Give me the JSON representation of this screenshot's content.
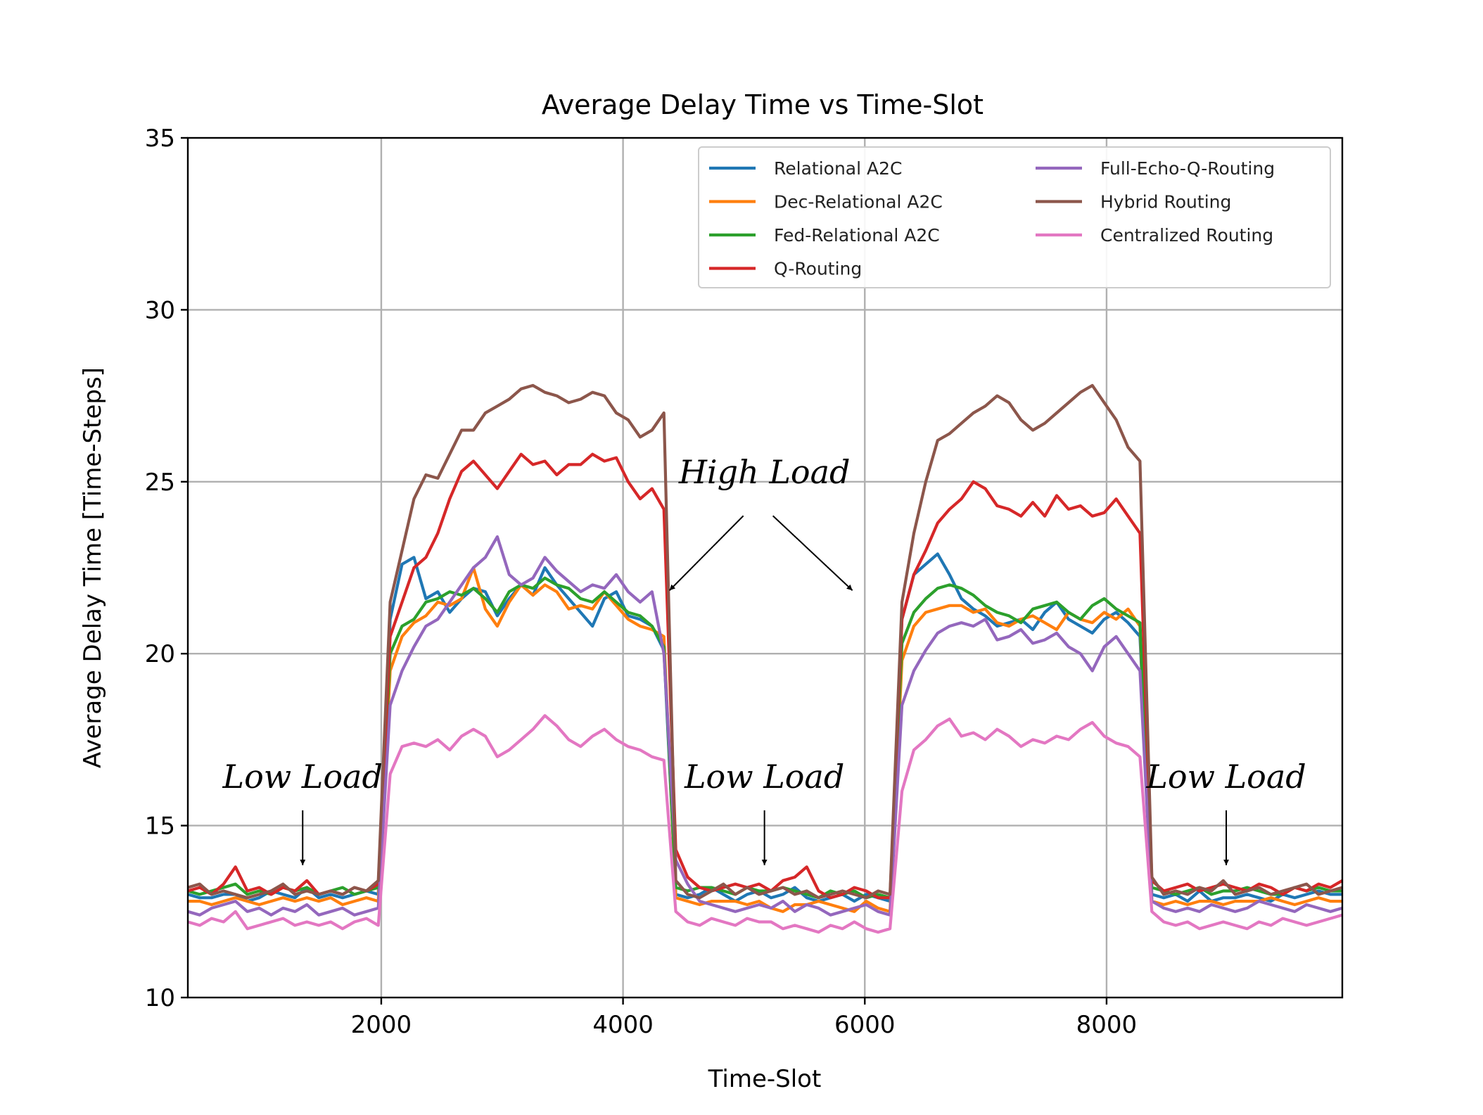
{
  "chart_data": {
    "type": "line",
    "title": "Average Delay Time vs Time-Slot",
    "xlabel": "Time-Slot",
    "ylabel": "Average Delay Time [Time-Steps]",
    "xlim": [
      400,
      9950
    ],
    "ylim": [
      10,
      35
    ],
    "xticks": [
      2000,
      4000,
      6000,
      8000
    ],
    "yticks": [
      10,
      15,
      20,
      25,
      30,
      35
    ],
    "grid": true,
    "legend_position": "top-right",
    "series": [
      {
        "name": "Relational A2C",
        "color": "#1f77b4",
        "values": [
          13.0,
          12.9,
          12.9,
          13.0,
          13.0,
          12.8,
          12.9,
          13.1,
          13.0,
          12.9,
          13.2,
          12.9,
          13.0,
          12.9,
          13.0,
          13.1,
          13.0,
          21.0,
          22.6,
          22.8,
          21.6,
          21.8,
          21.2,
          21.6,
          21.9,
          21.8,
          21.1,
          21.6,
          22.0,
          21.7,
          22.5,
          22.0,
          21.6,
          21.2,
          20.8,
          21.6,
          21.8,
          21.1,
          21.0,
          20.8,
          20.1,
          13.0,
          12.9,
          13.0,
          13.2,
          13.0,
          12.8,
          13.0,
          13.1,
          12.9,
          13.0,
          13.2,
          12.9,
          12.8,
          12.9,
          13.0,
          12.8,
          13.0,
          12.9,
          12.8,
          21.0,
          22.3,
          22.6,
          22.9,
          22.3,
          21.6,
          21.3,
          21.1,
          20.8,
          20.9,
          21.0,
          20.7,
          21.2,
          21.5,
          21.0,
          20.8,
          20.6,
          21.0,
          21.2,
          20.9,
          20.5,
          13.0,
          12.9,
          13.0,
          12.8,
          13.1,
          12.8,
          12.9,
          12.9,
          13.0,
          12.9,
          12.8,
          13.0,
          12.9,
          13.0,
          13.1,
          13.0,
          13.0
        ]
      },
      {
        "name": "Dec-Relational A2C",
        "color": "#ff7f0e",
        "values": [
          12.8,
          12.8,
          12.7,
          12.8,
          12.9,
          12.8,
          12.7,
          12.8,
          12.9,
          12.8,
          12.9,
          12.8,
          12.9,
          12.7,
          12.8,
          12.9,
          12.8,
          19.5,
          20.5,
          20.9,
          21.1,
          21.5,
          21.4,
          21.6,
          22.5,
          21.3,
          20.8,
          21.5,
          22.0,
          21.7,
          22.0,
          21.8,
          21.3,
          21.4,
          21.3,
          21.8,
          21.4,
          21.0,
          20.8,
          20.7,
          20.5,
          12.9,
          12.8,
          12.7,
          12.8,
          12.8,
          12.8,
          12.7,
          12.8,
          12.6,
          12.5,
          12.7,
          12.7,
          12.8,
          12.7,
          12.6,
          12.5,
          12.8,
          12.6,
          12.5,
          19.8,
          20.8,
          21.2,
          21.3,
          21.4,
          21.4,
          21.2,
          21.3,
          20.9,
          20.8,
          21.0,
          21.1,
          20.9,
          20.7,
          21.2,
          21.0,
          20.9,
          21.2,
          21.0,
          21.3,
          20.8,
          12.8,
          12.7,
          12.8,
          12.7,
          12.8,
          12.8,
          12.7,
          12.8,
          12.8,
          12.8,
          12.9,
          12.8,
          12.7,
          12.8,
          12.9,
          12.8,
          12.8
        ]
      },
      {
        "name": "Fed-Relational A2C",
        "color": "#2ca02c",
        "values": [
          13.1,
          13.0,
          13.1,
          13.2,
          13.3,
          13.0,
          13.1,
          13.0,
          13.2,
          13.1,
          13.2,
          13.0,
          13.1,
          13.2,
          13.0,
          13.1,
          13.2,
          20.0,
          20.8,
          21.0,
          21.5,
          21.6,
          21.8,
          21.7,
          21.9,
          21.6,
          21.2,
          21.8,
          22.0,
          21.9,
          22.2,
          22.0,
          21.9,
          21.6,
          21.5,
          21.8,
          21.5,
          21.2,
          21.1,
          20.8,
          20.2,
          13.2,
          13.1,
          13.2,
          13.2,
          13.1,
          13.0,
          13.2,
          13.1,
          13.1,
          13.2,
          13.1,
          13.0,
          12.9,
          13.1,
          13.0,
          13.1,
          12.9,
          13.0,
          12.9,
          20.3,
          21.2,
          21.6,
          21.9,
          22.0,
          21.9,
          21.7,
          21.4,
          21.2,
          21.1,
          20.9,
          21.3,
          21.4,
          21.5,
          21.2,
          21.0,
          21.4,
          21.6,
          21.3,
          21.1,
          20.9,
          13.2,
          13.1,
          13.0,
          13.1,
          13.2,
          13.0,
          13.1,
          13.1,
          13.2,
          13.1,
          13.0,
          13.0,
          13.2,
          13.1,
          13.2,
          13.1,
          13.1
        ]
      },
      {
        "name": "Q-Routing",
        "color": "#d62728",
        "values": [
          13.1,
          13.2,
          13.0,
          13.3,
          13.8,
          13.1,
          13.2,
          13.0,
          13.2,
          13.1,
          13.4,
          13.0,
          13.1,
          13.0,
          13.2,
          13.1,
          13.3,
          20.5,
          21.5,
          22.5,
          22.8,
          23.5,
          24.5,
          25.3,
          25.6,
          25.2,
          24.8,
          25.3,
          25.8,
          25.5,
          25.6,
          25.2,
          25.5,
          25.5,
          25.8,
          25.6,
          25.7,
          25.0,
          24.5,
          24.8,
          24.2,
          14.3,
          13.5,
          13.2,
          13.1,
          13.2,
          13.3,
          13.2,
          13.3,
          13.1,
          13.4,
          13.5,
          13.8,
          13.1,
          12.9,
          13.0,
          13.2,
          13.1,
          12.9,
          12.9,
          21.0,
          22.3,
          23.0,
          23.8,
          24.2,
          24.5,
          25.0,
          24.8,
          24.3,
          24.2,
          24.0,
          24.4,
          24.0,
          24.6,
          24.2,
          24.3,
          24.0,
          24.1,
          24.5,
          24.0,
          23.5,
          13.4,
          13.1,
          13.2,
          13.3,
          13.1,
          13.2,
          13.3,
          13.2,
          13.1,
          13.3,
          13.2,
          13.0,
          13.2,
          13.1,
          13.3,
          13.2,
          13.4
        ]
      },
      {
        "name": "Full-Echo-Q-Routing",
        "color": "#9467bd",
        "values": [
          12.5,
          12.4,
          12.6,
          12.7,
          12.8,
          12.5,
          12.6,
          12.4,
          12.6,
          12.5,
          12.7,
          12.4,
          12.5,
          12.6,
          12.4,
          12.5,
          12.6,
          18.5,
          19.5,
          20.2,
          20.8,
          21.0,
          21.5,
          22.0,
          22.5,
          22.8,
          23.4,
          22.3,
          22.0,
          22.2,
          22.8,
          22.4,
          22.1,
          21.8,
          22.0,
          21.9,
          22.3,
          21.8,
          21.5,
          21.8,
          20.0,
          14.0,
          13.3,
          12.8,
          12.7,
          12.6,
          12.5,
          12.6,
          12.7,
          12.6,
          12.8,
          12.5,
          12.7,
          12.6,
          12.4,
          12.5,
          12.6,
          12.7,
          12.5,
          12.4,
          18.5,
          19.5,
          20.1,
          20.6,
          20.8,
          20.9,
          20.8,
          21.0,
          20.4,
          20.5,
          20.7,
          20.3,
          20.4,
          20.6,
          20.2,
          20.0,
          19.5,
          20.2,
          20.5,
          20.0,
          19.5,
          12.8,
          12.6,
          12.5,
          12.6,
          12.5,
          12.7,
          12.6,
          12.5,
          12.6,
          12.8,
          12.7,
          12.6,
          12.5,
          12.7,
          12.6,
          12.5,
          12.6
        ]
      },
      {
        "name": "Hybrid Routing",
        "color": "#8c564b",
        "values": [
          13.2,
          13.3,
          13.0,
          13.1,
          13.0,
          12.9,
          13.0,
          13.1,
          13.3,
          13.0,
          13.1,
          13.0,
          13.1,
          13.0,
          13.2,
          13.1,
          13.4,
          21.5,
          23.0,
          24.5,
          25.2,
          25.1,
          25.8,
          26.5,
          26.5,
          27.0,
          27.2,
          27.4,
          27.7,
          27.8,
          27.6,
          27.5,
          27.3,
          27.4,
          27.6,
          27.5,
          27.0,
          26.8,
          26.3,
          26.5,
          27.0,
          13.4,
          13.0,
          12.9,
          13.1,
          13.3,
          13.0,
          13.2,
          13.0,
          13.1,
          13.2,
          13.0,
          13.1,
          12.9,
          13.0,
          13.1,
          13.0,
          12.9,
          13.1,
          13.0,
          21.5,
          23.5,
          25.0,
          26.2,
          26.4,
          26.7,
          27.0,
          27.2,
          27.5,
          27.3,
          26.8,
          26.5,
          26.7,
          27.0,
          27.3,
          27.6,
          27.8,
          27.3,
          26.8,
          26.0,
          25.6,
          13.5,
          13.0,
          13.1,
          13.0,
          13.2,
          13.1,
          13.4,
          13.0,
          13.1,
          13.2,
          13.0,
          13.1,
          13.2,
          13.3,
          13.0,
          13.1,
          13.2
        ]
      },
      {
        "name": "Centralized Routing",
        "color": "#e377c2",
        "values": [
          12.2,
          12.1,
          12.3,
          12.2,
          12.5,
          12.0,
          12.1,
          12.2,
          12.3,
          12.1,
          12.2,
          12.1,
          12.2,
          12.0,
          12.2,
          12.3,
          12.1,
          16.5,
          17.3,
          17.4,
          17.3,
          17.5,
          17.2,
          17.6,
          17.8,
          17.6,
          17.0,
          17.2,
          17.5,
          17.8,
          18.2,
          17.9,
          17.5,
          17.3,
          17.6,
          17.8,
          17.5,
          17.3,
          17.2,
          17.0,
          16.9,
          12.5,
          12.2,
          12.1,
          12.3,
          12.2,
          12.1,
          12.3,
          12.2,
          12.2,
          12.0,
          12.1,
          12.0,
          11.9,
          12.1,
          12.0,
          12.2,
          12.0,
          11.9,
          12.0,
          16.0,
          17.2,
          17.5,
          17.9,
          18.1,
          17.6,
          17.7,
          17.5,
          17.8,
          17.6,
          17.3,
          17.5,
          17.4,
          17.6,
          17.5,
          17.8,
          18.0,
          17.6,
          17.4,
          17.3,
          17.0,
          12.5,
          12.2,
          12.1,
          12.2,
          12.0,
          12.1,
          12.2,
          12.1,
          12.0,
          12.2,
          12.1,
          12.3,
          12.2,
          12.1,
          12.2,
          12.3,
          12.4
        ]
      }
    ],
    "annotations": [
      {
        "text": "Low Load",
        "x": 1350,
        "y": 16.1
      },
      {
        "text": "High Load",
        "x": 5170,
        "y": 24.95
      },
      {
        "text": "Low Load",
        "x": 5170,
        "y": 16.1
      },
      {
        "text": "Low Load",
        "x": 8990,
        "y": 16.1
      }
    ]
  }
}
